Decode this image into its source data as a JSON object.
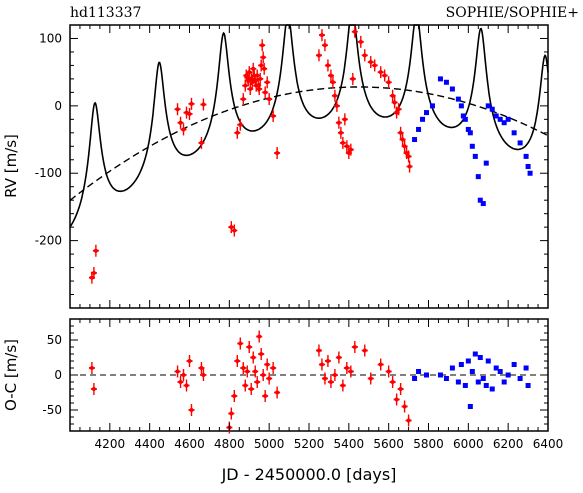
{
  "header": {
    "star_name": "hd113337",
    "instrument_label": "SOPHIE/SOPHIE+"
  },
  "colors": {
    "sophie": "#ff0000",
    "sophie_plus": "#0000ff",
    "model": "#000000",
    "axes": "#000000"
  },
  "chart_data": [
    {
      "type": "scatter",
      "panel": "rv",
      "xlabel": "",
      "ylabel": "RV [m/s]",
      "xlim": [
        4000,
        6400
      ],
      "ylim": [
        -300,
        120
      ],
      "x_ticks": [
        4200,
        4400,
        4600,
        4800,
        5000,
        5200,
        5400,
        5600,
        5800,
        6000,
        6200,
        6400
      ],
      "y_ticks": [
        -200,
        -100,
        0,
        100
      ],
      "y_tick_labels": [
        "-200",
        "-100",
        "0",
        "100"
      ],
      "series": [
        {
          "name": "SOPHIE",
          "marker": "cross-with-errorbars",
          "x": [
            4110,
            4120,
            4130,
            4540,
            4555,
            4570,
            4585,
            4600,
            4610,
            4660,
            4670,
            4810,
            4825,
            4840,
            4855,
            4870,
            4880,
            4885,
            4890,
            4895,
            4900,
            4905,
            4910,
            4915,
            4920,
            4925,
            4930,
            4935,
            4940,
            4945,
            4950,
            4955,
            4960,
            4965,
            4970,
            4975,
            4980,
            4990,
            5000,
            5020,
            5040,
            5250,
            5265,
            5280,
            5295,
            5310,
            5320,
            5330,
            5340,
            5350,
            5360,
            5370,
            5380,
            5390,
            5400,
            5410,
            5420,
            5430,
            5460,
            5480,
            5510,
            5530,
            5560,
            5580,
            5600,
            5620,
            5630,
            5640,
            5650,
            5660,
            5670,
            5680,
            5690,
            5700,
            5705
          ],
          "y": [
            -255,
            -248,
            -215,
            -5,
            -25,
            -35,
            -10,
            -12,
            3,
            -55,
            2,
            -180,
            -185,
            -40,
            -28,
            10,
            30,
            45,
            42,
            38,
            50,
            25,
            40,
            35,
            55,
            45,
            38,
            30,
            45,
            30,
            25,
            40,
            60,
            90,
            72,
            55,
            20,
            35,
            10,
            -15,
            -70,
            75,
            105,
            90,
            60,
            45,
            35,
            15,
            0,
            -25,
            -40,
            -55,
            -20,
            -60,
            -70,
            -65,
            40,
            110,
            95,
            75,
            65,
            60,
            50,
            45,
            35,
            15,
            5,
            -10,
            -5,
            -40,
            -50,
            -60,
            -70,
            -75,
            -90
          ]
        },
        {
          "name": "SOPHIE+",
          "marker": "filled-square",
          "x": [
            5730,
            5750,
            5770,
            5790,
            5820,
            5860,
            5890,
            5920,
            5950,
            5965,
            5975,
            5985,
            6000,
            6010,
            6020,
            6035,
            6050,
            6060,
            6075,
            6090,
            6100,
            6120,
            6140,
            6160,
            6180,
            6200,
            6230,
            6260,
            6290,
            6300,
            6310
          ],
          "y": [
            -50,
            -35,
            -20,
            -10,
            0,
            40,
            35,
            25,
            10,
            0,
            -15,
            -20,
            -35,
            -40,
            -60,
            -75,
            -105,
            -140,
            -145,
            -85,
            0,
            -5,
            -15,
            -20,
            -25,
            -20,
            -40,
            -55,
            -75,
            -90,
            -100
          ]
        }
      ],
      "model_curves": [
        {
          "name": "",
          "style": "solid"
        },
        {
          "name": "",
          "style": "dashed"
        }
      ]
    },
    {
      "type": "scatter",
      "panel": "residuals",
      "xlabel": "JD - 2450000.0 [days]",
      "ylabel": "O-C [m/s]",
      "xlim": [
        4000,
        6400
      ],
      "ylim": [
        -80,
        80
      ],
      "x_ticks": [
        4200,
        4400,
        4600,
        4800,
        5000,
        5200,
        5400,
        5600,
        5800,
        6000,
        6200,
        6400
      ],
      "x_tick_labels": [
        "4200",
        "4400",
        "4600",
        "4800",
        "5000",
        "5200",
        "5400",
        "5600",
        "5800",
        "6000",
        "6200",
        "6400"
      ],
      "y_ticks": [
        -50,
        0,
        50
      ],
      "y_tick_labels": [
        "-50",
        "0",
        "50"
      ],
      "series": [
        {
          "name": "SOPHIE",
          "marker": "cross-with-errorbars",
          "x": [
            4110,
            4120,
            4540,
            4555,
            4570,
            4585,
            4600,
            4610,
            4660,
            4670,
            4800,
            4810,
            4825,
            4840,
            4855,
            4870,
            4880,
            4890,
            4900,
            4910,
            4920,
            4930,
            4940,
            4950,
            4960,
            4970,
            4980,
            4990,
            5000,
            5020,
            5040,
            5250,
            5265,
            5280,
            5295,
            5310,
            5330,
            5350,
            5370,
            5390,
            5410,
            5430,
            5480,
            5510,
            5560,
            5600,
            5620,
            5640,
            5660,
            5680,
            5700
          ],
          "y": [
            10,
            -20,
            5,
            -10,
            0,
            -15,
            20,
            -50,
            10,
            0,
            -75,
            -55,
            -30,
            20,
            45,
            10,
            -15,
            5,
            40,
            -20,
            25,
            5,
            -10,
            55,
            30,
            0,
            -30,
            15,
            -5,
            10,
            -25,
            35,
            15,
            -5,
            20,
            -10,
            0,
            25,
            -15,
            10,
            5,
            40,
            35,
            -5,
            15,
            5,
            -10,
            -35,
            -20,
            -45,
            -65
          ]
        },
        {
          "name": "SOPHIE+",
          "marker": "filled-square",
          "x": [
            5730,
            5750,
            5790,
            5860,
            5890,
            5920,
            5950,
            5965,
            5985,
            6000,
            6010,
            6020,
            6035,
            6050,
            6060,
            6075,
            6090,
            6100,
            6120,
            6140,
            6160,
            6180,
            6200,
            6230,
            6260,
            6290,
            6300
          ],
          "y": [
            -5,
            5,
            0,
            0,
            -5,
            10,
            -10,
            15,
            -15,
            20,
            -45,
            5,
            30,
            -10,
            25,
            -5,
            -15,
            20,
            -20,
            10,
            5,
            -10,
            0,
            15,
            -5,
            10,
            -15
          ]
        }
      ]
    }
  ]
}
